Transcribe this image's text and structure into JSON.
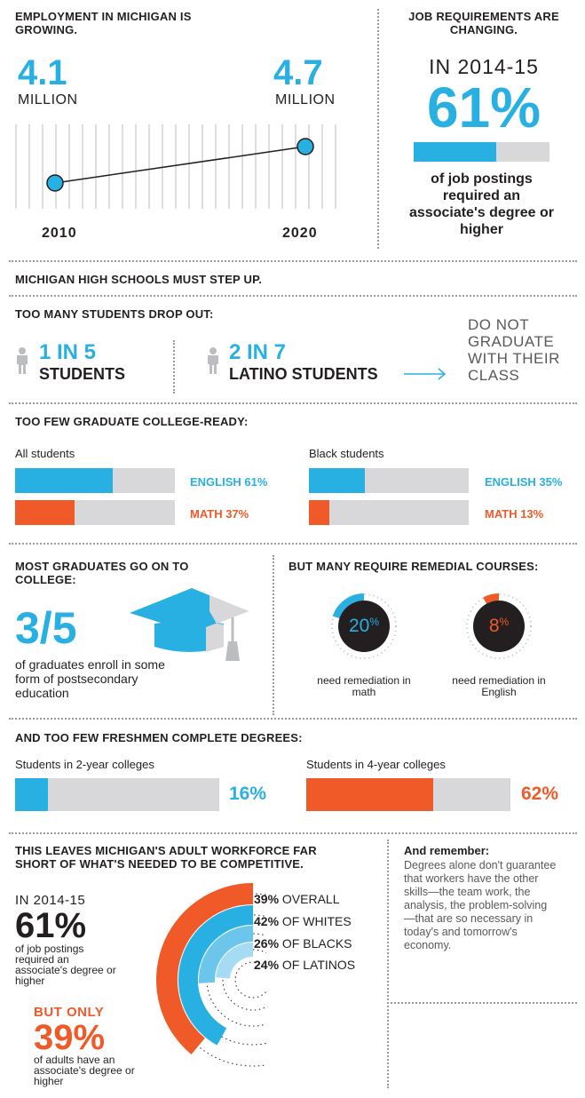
{
  "employment": {
    "title": "EMPLOYMENT IN MICHIGAN IS GROWING.",
    "start_value": "4.1",
    "start_unit": "MILLION",
    "end_value": "4.7",
    "end_unit": "MILLION",
    "start_year": "2010",
    "end_year": "2020"
  },
  "job_req": {
    "title": "JOB REQUIREMENTS ARE CHANGING.",
    "period": "IN 2014-15",
    "percent": "61%",
    "fraction": 0.61,
    "caption": "of job postings required an associate's degree or higher"
  },
  "highschools": {
    "title": "MICHIGAN HIGH SCHOOLS MUST STEP UP."
  },
  "dropout": {
    "title": "TOO MANY STUDENTS DROP OUT:",
    "left_ratio": "1 IN 5",
    "left_label": "STUDENTS",
    "right_ratio": "2 IN 7",
    "right_label": "LATINO STUDENTS",
    "outcome": "DO NOT GRADUATE WITH THEIR CLASS"
  },
  "college_ready": {
    "title": "TOO FEW GRADUATE COLLEGE-READY:",
    "groups": [
      {
        "name": "All students",
        "english_label": "ENGLISH 61%",
        "english": 0.61,
        "math_label": "MATH 37%",
        "math": 0.37
      },
      {
        "name": "Black students",
        "english_label": "ENGLISH 35%",
        "english": 0.35,
        "math_label": "MATH 13%",
        "math": 0.13
      }
    ]
  },
  "go_on": {
    "title": "MOST GRADUATES GO ON TO COLLEGE:",
    "value": "3/5",
    "caption": "of graduates enroll in some form of postsecondary education"
  },
  "remedial": {
    "title": "BUT MANY REQUIRE REMEDIAL COURSES:",
    "items": [
      {
        "value": "20",
        "unit": "%",
        "fraction": 0.2,
        "color": "#29b0e3",
        "caption": "need remediation in math"
      },
      {
        "value": "8",
        "unit": "%",
        "fraction": 0.08,
        "color": "#f05a28",
        "caption": "need remediation in English"
      }
    ]
  },
  "degrees": {
    "title": "AND TOO FEW FRESHMEN COMPLETE DEGREES:",
    "items": [
      {
        "name": "Students in 2-year colleges",
        "value": "16%",
        "fraction": 0.16,
        "color": "#29b0e3"
      },
      {
        "name": "Students in 4-year colleges",
        "value": "62%",
        "fraction": 0.62,
        "color": "#f05a28"
      }
    ]
  },
  "workforce": {
    "title": "THIS LEAVES MICHIGAN'S ADULT WORKFORCE FAR SHORT OF WHAT'S NEEDED TO BE COMPETITIVE.",
    "period": "IN 2014-15",
    "percent": "61%",
    "caption": "of job postings required an associate's degree or higher",
    "but_only": "BUT ONLY",
    "adults_percent": "39%",
    "adults_caption": "of adults have an associate's degree or higher",
    "arcs": [
      {
        "pct": "39%",
        "label": "OVERALL",
        "fraction": 0.39,
        "color": "#f05a28"
      },
      {
        "pct": "42%",
        "label": "OF WHITES",
        "fraction": 0.42,
        "color": "#29b0e3"
      },
      {
        "pct": "26%",
        "label": "OF BLACKS",
        "fraction": 0.26,
        "color": "#6cc6ec"
      },
      {
        "pct": "24%",
        "label": "OF LATINOS",
        "fraction": 0.24,
        "color": "#a6dcf3"
      }
    ]
  },
  "remember": {
    "title": "And remember:",
    "text": "Degrees alone don't guarantee that workers have the other skills—the team work, the analysis, the problem-solving—that are so necessary in today's and tomorrow's economy."
  }
}
